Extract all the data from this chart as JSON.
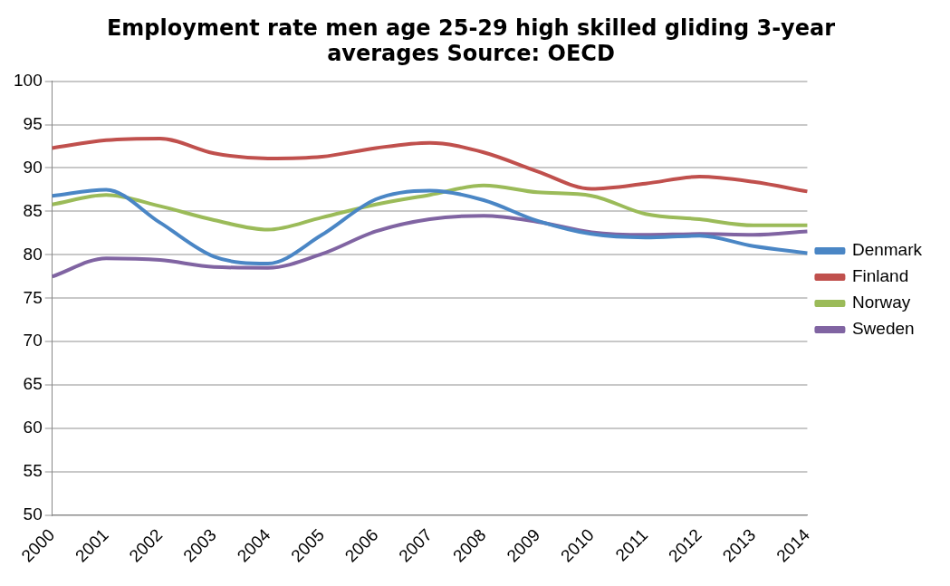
{
  "chart_data": {
    "type": "line",
    "title": "Employment rate men age 25-29 high skilled gliding 3-year averages Source: OECD",
    "categories": [
      "2000",
      "2001",
      "2002",
      "2003",
      "2004",
      "2005",
      "2006",
      "2007",
      "2008",
      "2009",
      "2010",
      "2011",
      "2012",
      "2013",
      "2014"
    ],
    "series": [
      {
        "name": "Denmark",
        "color": "#4a86c5",
        "values": [
          86.8,
          87.5,
          83.7,
          79.8,
          79.0,
          82.3,
          86.4,
          87.4,
          86.3,
          83.9,
          82.4,
          82.0,
          82.2,
          81.0,
          80.2
        ]
      },
      {
        "name": "Finland",
        "color": "#c0504d",
        "values": [
          92.3,
          93.2,
          93.4,
          91.7,
          91.1,
          91.3,
          92.3,
          92.9,
          91.8,
          89.6,
          87.6,
          88.2,
          89.0,
          88.4,
          87.3
        ]
      },
      {
        "name": "Norway",
        "color": "#9bbb59",
        "values": [
          85.8,
          86.9,
          85.6,
          84.0,
          82.9,
          84.3,
          85.8,
          86.9,
          88.0,
          87.2,
          86.8,
          84.7,
          84.1,
          83.4,
          83.4
        ]
      },
      {
        "name": "Sweden",
        "color": "#8064a2",
        "values": [
          77.5,
          79.6,
          79.4,
          78.6,
          78.5,
          80.1,
          82.7,
          84.1,
          84.5,
          83.8,
          82.6,
          82.3,
          82.4,
          82.3,
          82.7
        ]
      }
    ],
    "ylim": [
      50,
      100
    ],
    "yticks": [
      50,
      55,
      60,
      65,
      70,
      75,
      80,
      85,
      90,
      95,
      100
    ],
    "grid": "y",
    "legend": "right",
    "marker": "none",
    "line_style": "solid"
  }
}
